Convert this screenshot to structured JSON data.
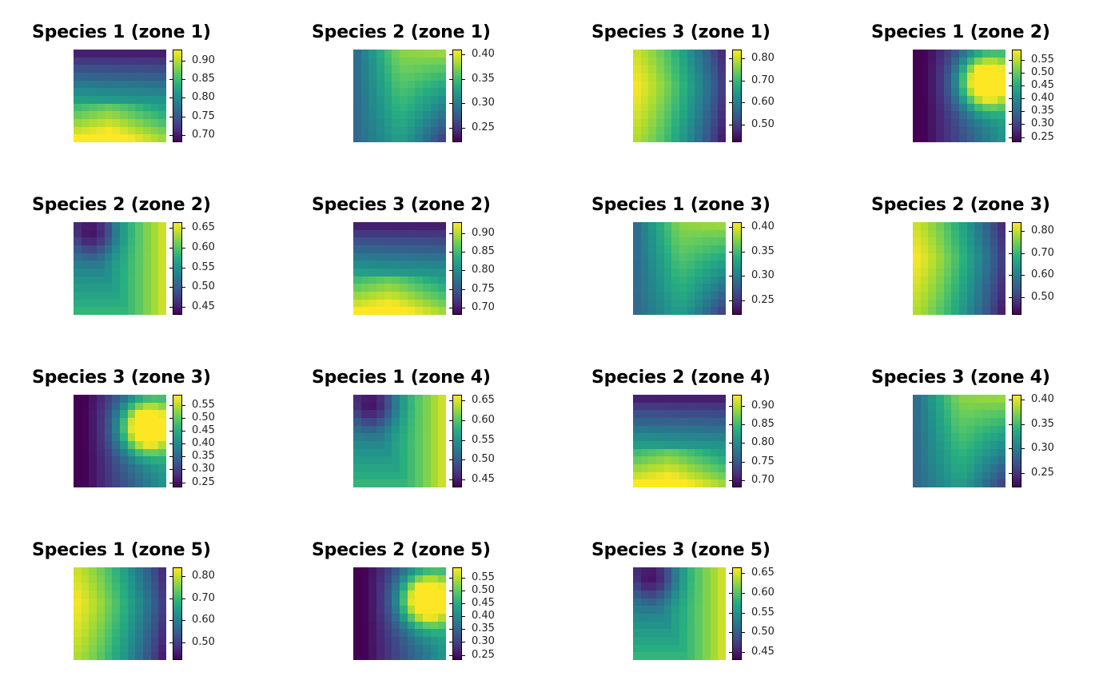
{
  "colormap": [
    "#440154",
    "#472d7b",
    "#3b528b",
    "#2c728e",
    "#21918c",
    "#28ae80",
    "#5ec962",
    "#addc30",
    "#fde725"
  ],
  "chart_data": [
    {
      "type": "heatmap",
      "title": "Species 1 (zone 1)",
      "pattern": "P1",
      "ticks": [
        "0.90",
        "0.85",
        "0.80",
        "0.75",
        "0.70"
      ],
      "tick_values": [
        0.9,
        0.85,
        0.8,
        0.75,
        0.7
      ],
      "range": [
        0.68,
        0.93
      ]
    },
    {
      "type": "heatmap",
      "title": "Species 2 (zone 1)",
      "pattern": "P2",
      "ticks": [
        "0.40",
        "0.35",
        "0.30",
        "0.25"
      ],
      "tick_values": [
        0.4,
        0.35,
        0.3,
        0.25
      ],
      "range": [
        0.22,
        0.41
      ]
    },
    {
      "type": "heatmap",
      "title": "Species 3 (zone 1)",
      "pattern": "P3",
      "ticks": [
        "0.80",
        "0.70",
        "0.60",
        "0.50"
      ],
      "tick_values": [
        0.8,
        0.7,
        0.6,
        0.5
      ],
      "range": [
        0.42,
        0.84
      ]
    },
    {
      "type": "heatmap",
      "title": "Species 1 (zone 2)",
      "pattern": "P4",
      "ticks": [
        "0.55",
        "0.50",
        "0.45",
        "0.40",
        "0.35",
        "0.30",
        "0.25"
      ],
      "tick_values": [
        0.55,
        0.5,
        0.45,
        0.4,
        0.35,
        0.3,
        0.25
      ],
      "range": [
        0.23,
        0.59
      ]
    },
    {
      "type": "heatmap",
      "title": "Species 2 (zone 2)",
      "pattern": "P5",
      "ticks": [
        "0.65",
        "0.60",
        "0.55",
        "0.50",
        "0.45"
      ],
      "tick_values": [
        0.65,
        0.6,
        0.55,
        0.5,
        0.45
      ],
      "range": [
        0.43,
        0.665
      ]
    },
    {
      "type": "heatmap",
      "title": "Species 3 (zone 2)",
      "pattern": "P1",
      "ticks": [
        "0.90",
        "0.85",
        "0.80",
        "0.75",
        "0.70"
      ],
      "tick_values": [
        0.9,
        0.85,
        0.8,
        0.75,
        0.7
      ],
      "range": [
        0.68,
        0.93
      ]
    },
    {
      "type": "heatmap",
      "title": "Species 1 (zone 3)",
      "pattern": "P2",
      "ticks": [
        "0.40",
        "0.35",
        "0.30",
        "0.25"
      ],
      "tick_values": [
        0.4,
        0.35,
        0.3,
        0.25
      ],
      "range": [
        0.22,
        0.41
      ]
    },
    {
      "type": "heatmap",
      "title": "Species 2 (zone 3)",
      "pattern": "P3",
      "ticks": [
        "0.80",
        "0.70",
        "0.60",
        "0.50"
      ],
      "tick_values": [
        0.8,
        0.7,
        0.6,
        0.5
      ],
      "range": [
        0.42,
        0.84
      ]
    },
    {
      "type": "heatmap",
      "title": "Species 3 (zone 3)",
      "pattern": "P4",
      "ticks": [
        "0.55",
        "0.50",
        "0.45",
        "0.40",
        "0.35",
        "0.30",
        "0.25"
      ],
      "tick_values": [
        0.55,
        0.5,
        0.45,
        0.4,
        0.35,
        0.3,
        0.25
      ],
      "range": [
        0.23,
        0.59
      ]
    },
    {
      "type": "heatmap",
      "title": "Species 1 (zone 4)",
      "pattern": "P5",
      "ticks": [
        "0.65",
        "0.60",
        "0.55",
        "0.50",
        "0.45"
      ],
      "tick_values": [
        0.65,
        0.6,
        0.55,
        0.5,
        0.45
      ],
      "range": [
        0.43,
        0.665
      ]
    },
    {
      "type": "heatmap",
      "title": "Species 2 (zone 4)",
      "pattern": "P1",
      "ticks": [
        "0.90",
        "0.85",
        "0.80",
        "0.75",
        "0.70"
      ],
      "tick_values": [
        0.9,
        0.85,
        0.8,
        0.75,
        0.7
      ],
      "range": [
        0.68,
        0.93
      ]
    },
    {
      "type": "heatmap",
      "title": "Species 3 (zone 4)",
      "pattern": "P2",
      "ticks": [
        "0.40",
        "0.35",
        "0.30",
        "0.25"
      ],
      "tick_values": [
        0.4,
        0.35,
        0.3,
        0.25
      ],
      "range": [
        0.22,
        0.41
      ]
    },
    {
      "type": "heatmap",
      "title": "Species 1 (zone 5)",
      "pattern": "P3",
      "ticks": [
        "0.80",
        "0.70",
        "0.60",
        "0.50"
      ],
      "tick_values": [
        0.8,
        0.7,
        0.6,
        0.5
      ],
      "range": [
        0.42,
        0.84
      ]
    },
    {
      "type": "heatmap",
      "title": "Species 2 (zone 5)",
      "pattern": "P4",
      "ticks": [
        "0.55",
        "0.50",
        "0.45",
        "0.40",
        "0.35",
        "0.30",
        "0.25"
      ],
      "tick_values": [
        0.55,
        0.5,
        0.45,
        0.4,
        0.35,
        0.3,
        0.25
      ],
      "range": [
        0.23,
        0.59
      ]
    },
    {
      "type": "heatmap",
      "title": "Species 3 (zone 5)",
      "pattern": "P5",
      "ticks": [
        "0.65",
        "0.60",
        "0.55",
        "0.50",
        "0.45"
      ],
      "tick_values": [
        0.65,
        0.6,
        0.55,
        0.5,
        0.45
      ],
      "range": [
        0.43,
        0.665
      ]
    }
  ]
}
